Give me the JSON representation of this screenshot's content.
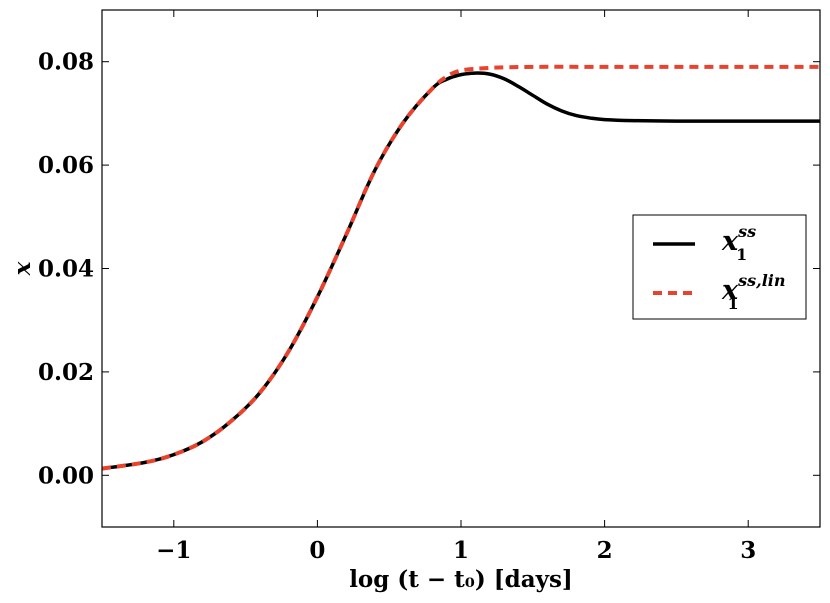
{
  "chart_data": {
    "type": "line",
    "title": "",
    "xlabel": "log (t − t₀) [days]",
    "ylabel": "x",
    "xlim": [
      -1.5,
      3.5
    ],
    "ylim": [
      -0.01,
      0.09
    ],
    "xticks": [
      -1,
      0,
      1,
      2,
      3
    ],
    "xtick_labels": [
      "−1",
      "0",
      "1",
      "2",
      "3"
    ],
    "yticks": [
      0.0,
      0.02,
      0.04,
      0.06,
      0.08
    ],
    "ytick_labels": [
      "0.00",
      "0.02",
      "0.04",
      "0.06",
      "0.08"
    ],
    "grid": false,
    "legend_position": "center-right",
    "series": [
      {
        "name": "x₁^ss",
        "legend_base": "x",
        "legend_sub": "1",
        "legend_sup": "ss",
        "color": "#000000",
        "style": "solid",
        "x": [
          -1.5,
          -1.2,
          -1.0,
          -0.8,
          -0.6,
          -0.4,
          -0.2,
          0.0,
          0.2,
          0.4,
          0.6,
          0.8,
          0.9,
          1.0,
          1.1,
          1.2,
          1.3,
          1.4,
          1.5,
          1.6,
          1.7,
          1.8,
          1.9,
          2.0,
          2.2,
          2.5,
          3.0,
          3.5
        ],
        "y": [
          0.0013,
          0.0025,
          0.004,
          0.0065,
          0.0105,
          0.016,
          0.024,
          0.0345,
          0.0465,
          0.059,
          0.0683,
          0.0748,
          0.0766,
          0.0775,
          0.0778,
          0.0776,
          0.0767,
          0.0752,
          0.0735,
          0.0718,
          0.0705,
          0.0696,
          0.0691,
          0.0688,
          0.0686,
          0.0685,
          0.0685,
          0.0685
        ]
      },
      {
        "name": "x₁^ss,lin",
        "legend_base": "x",
        "legend_sub": "1",
        "legend_sup": "ss,lin",
        "color": "#e8432e",
        "style": "dashed",
        "x": [
          -1.5,
          -1.2,
          -1.0,
          -0.8,
          -0.6,
          -0.4,
          -0.2,
          0.0,
          0.2,
          0.4,
          0.6,
          0.8,
          0.9,
          1.0,
          1.2,
          1.5,
          2.0,
          2.5,
          3.0,
          3.5
        ],
        "y": [
          0.0013,
          0.0025,
          0.004,
          0.0065,
          0.0105,
          0.016,
          0.024,
          0.0345,
          0.0465,
          0.059,
          0.0683,
          0.0748,
          0.0771,
          0.0783,
          0.0788,
          0.079,
          0.079,
          0.079,
          0.079,
          0.079
        ]
      }
    ]
  }
}
